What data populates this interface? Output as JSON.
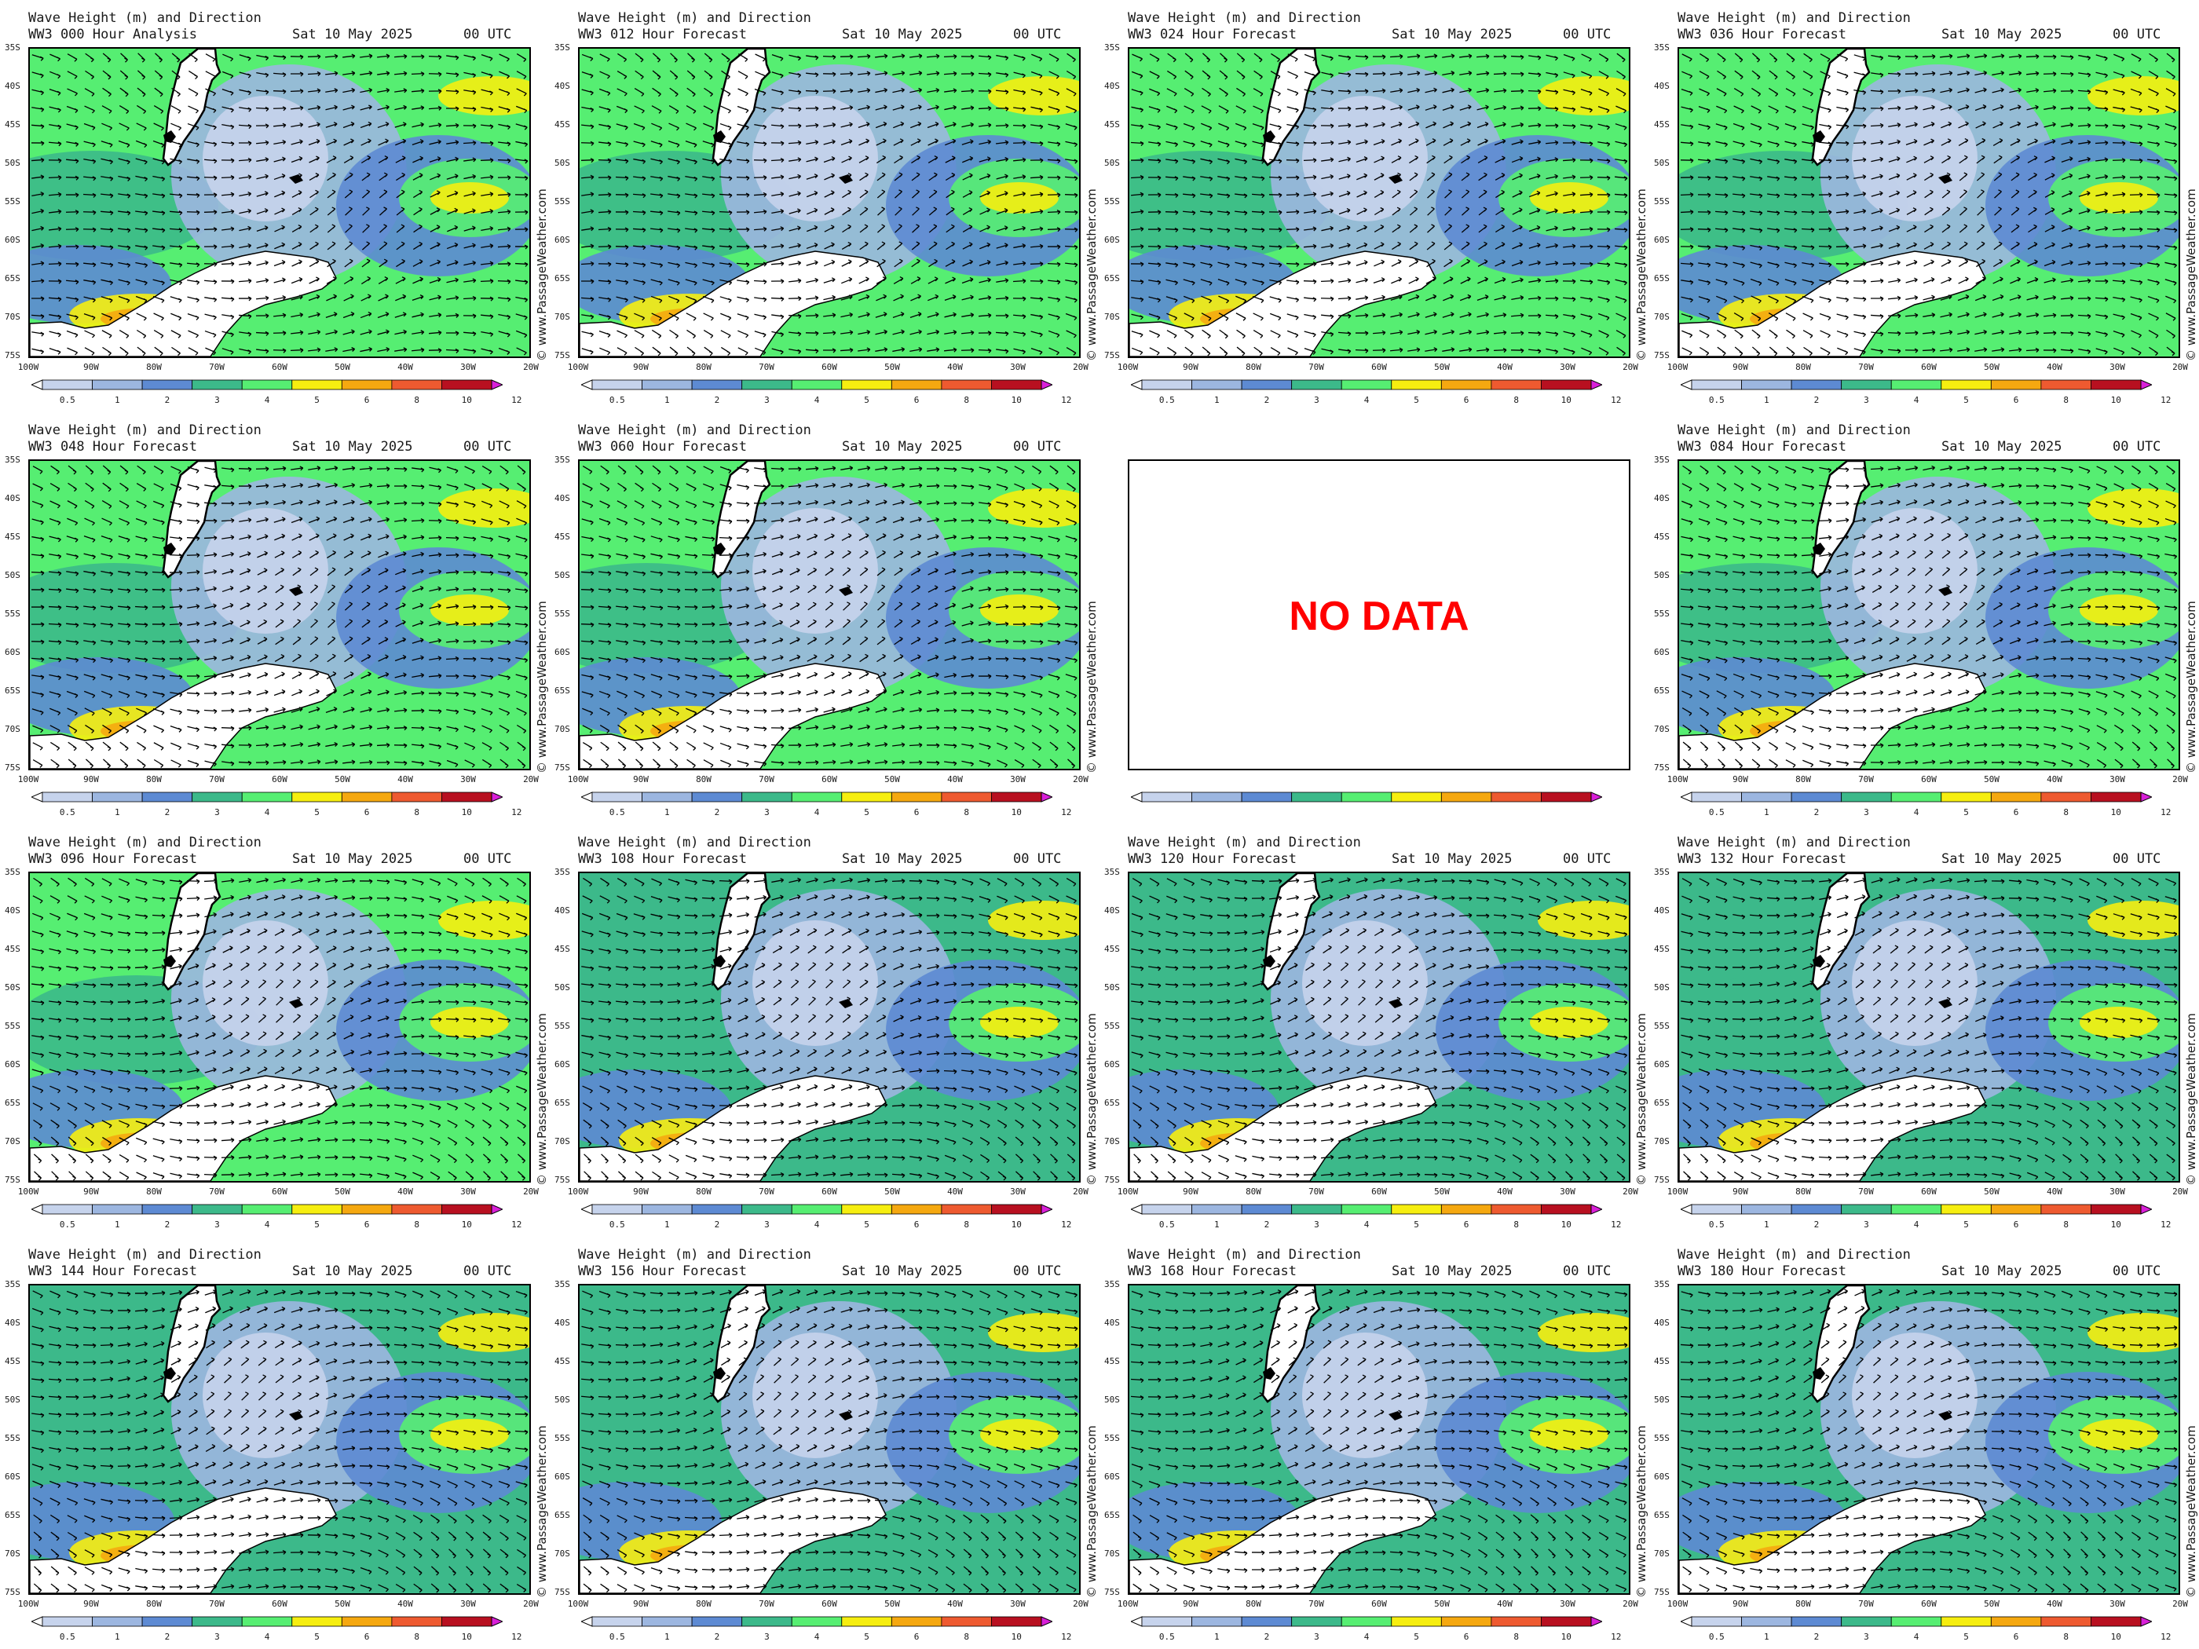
{
  "title_line1": "Wave Height (m) and Direction",
  "run_date": "Sat 10 May 2025",
  "run_time": "00 UTC",
  "watermark": "© www.PassageWeather.com",
  "no_data_text": "NO DATA",
  "lat_labels": [
    "35S",
    "40S",
    "45S",
    "50S",
    "55S",
    "60S",
    "65S",
    "70S",
    "75S"
  ],
  "lon_labels": [
    "100W",
    "90W",
    "80W",
    "70W",
    "60W",
    "50W",
    "40W",
    "30W",
    "20W"
  ],
  "colorbar": {
    "labels": [
      "0.5",
      "1",
      "2",
      "3",
      "4",
      "5",
      "6",
      "8",
      "10",
      "12"
    ],
    "colors": [
      "#ffffff",
      "#c6d3ec",
      "#9cb6e0",
      "#5d8ad3",
      "#3cb98a",
      "#56ee72",
      "#f6ee10",
      "#f5a810",
      "#ee5a30",
      "#b81020",
      "#d820d8"
    ]
  },
  "colors": {
    "land": "#ffffff",
    "coast": "#000000",
    "arrow": "#000000"
  },
  "panels": [
    {
      "label": "WW3 000 Hour Analysis"
    },
    {
      "label": "WW3 012 Hour Forecast"
    },
    {
      "label": "WW3 024 Hour Forecast"
    },
    {
      "label": "WW3 036 Hour Forecast"
    },
    {
      "label": "WW3 048 Hour Forecast"
    },
    {
      "label": "WW3 060 Hour Forecast"
    },
    {
      "label": "",
      "no_data": true
    },
    {
      "label": "WW3 084 Hour Forecast"
    },
    {
      "label": "WW3 096 Hour Forecast"
    },
    {
      "label": "WW3 108 Hour Forecast"
    },
    {
      "label": "WW3 120 Hour Forecast"
    },
    {
      "label": "WW3 132 Hour Forecast"
    },
    {
      "label": "WW3 144 Hour Forecast"
    },
    {
      "label": "WW3 156 Hour Forecast"
    },
    {
      "label": "WW3 168 Hour Forecast"
    },
    {
      "label": "WW3 180 Hour Forecast"
    }
  ]
}
